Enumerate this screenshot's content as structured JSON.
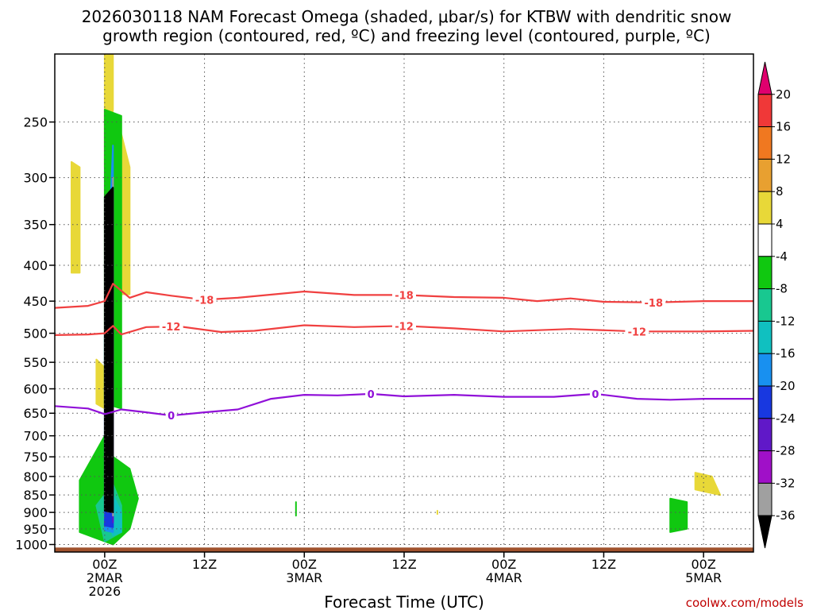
{
  "chart_data": {
    "type": "time-height",
    "title": "2026030118 NAM Forecast Omega (shaded, μbar/s) for KTBW with dendritic snow growth region (contoured, red, ºC) and freezing level (contoured, purple, ºC)",
    "title_lines": [
      "2026030118 NAM Forecast Omega (shaded, μbar/s) for KTBW with dendritic snow",
      "growth region (contoured, red, ºC) and freezing level (contoured, purple, ºC)"
    ],
    "xlabel": "Forecast Time (UTC)",
    "ylabel": "",
    "y_scale": "pressure",
    "y_ticks": [
      250,
      300,
      350,
      400,
      450,
      500,
      550,
      600,
      650,
      700,
      750,
      800,
      850,
      900,
      950,
      1000
    ],
    "ylim": [
      1025,
      200
    ],
    "x_start": "2026-03-01T18Z",
    "x_end": "2026-03-05T06Z",
    "x_ticks": [
      {
        "time": "2026-03-02T00Z",
        "lines": [
          "00Z",
          "2MAR",
          "2026"
        ]
      },
      {
        "time": "2026-03-02T12Z",
        "lines": [
          "12Z"
        ]
      },
      {
        "time": "2026-03-03T00Z",
        "lines": [
          "00Z",
          "3MAR"
        ]
      },
      {
        "time": "2026-03-03T12Z",
        "lines": [
          "12Z"
        ]
      },
      {
        "time": "2026-03-04T00Z",
        "lines": [
          "00Z",
          "4MAR"
        ]
      },
      {
        "time": "2026-03-04T12Z",
        "lines": [
          "12Z"
        ]
      },
      {
        "time": "2026-03-05T00Z",
        "lines": [
          "00Z",
          "5MAR"
        ]
      }
    ],
    "grid": true,
    "colorbar": {
      "units": "μbar/s",
      "ticks": [
        20,
        16,
        12,
        8,
        4,
        -4,
        -8,
        -12,
        -16,
        -20,
        -24,
        -28,
        -32,
        -36
      ],
      "colors": [
        "#e0006e",
        "#f03838",
        "#f07820",
        "#e8a030",
        "#e8d838",
        "#ffffff",
        "#10c810",
        "#18c890",
        "#10c0c0",
        "#1890f0",
        "#1838e0",
        "#6018c8",
        "#a010c8",
        "#a0a0a0",
        "#000000"
      ]
    },
    "series": [
      {
        "name": "-18",
        "color": "#f04040",
        "labels": [
          {
            "time": "2026-03-02T12Z"
          },
          {
            "time": "2026-03-03T12Z"
          },
          {
            "time": "2026-03-04T18Z"
          }
        ],
        "points": [
          [
            "2026-03-01T18Z",
            460
          ],
          [
            "2026-03-01T22Z",
            457
          ],
          [
            "2026-03-02T00Z",
            450
          ],
          [
            "2026-03-02T01Z",
            425
          ],
          [
            "2026-03-02T03Z",
            445
          ],
          [
            "2026-03-02T05Z",
            437
          ],
          [
            "2026-03-02T08Z",
            442
          ],
          [
            "2026-03-02T12Z",
            448
          ],
          [
            "2026-03-02T16Z",
            445
          ],
          [
            "2026-03-03T00Z",
            436
          ],
          [
            "2026-03-03T06Z",
            441
          ],
          [
            "2026-03-03T12Z",
            441
          ],
          [
            "2026-03-03T18Z",
            444
          ],
          [
            "2026-03-04T00Z",
            445
          ],
          [
            "2026-03-04T04Z",
            450
          ],
          [
            "2026-03-04T08Z",
            446
          ],
          [
            "2026-03-04T12Z",
            451
          ],
          [
            "2026-03-04T18Z",
            452
          ],
          [
            "2026-03-05T00Z",
            450
          ],
          [
            "2026-03-05T06Z",
            450
          ]
        ]
      },
      {
        "name": "-12",
        "color": "#f04040",
        "labels": [
          {
            "time": "2026-03-02T08Z"
          },
          {
            "time": "2026-03-03T12Z"
          },
          {
            "time": "2026-03-04T16Z"
          }
        ],
        "points": [
          [
            "2026-03-01T18Z",
            503
          ],
          [
            "2026-03-01T22Z",
            502
          ],
          [
            "2026-03-02T00Z",
            500
          ],
          [
            "2026-03-02T01Z",
            488
          ],
          [
            "2026-03-02T02Z",
            502
          ],
          [
            "2026-03-02T05Z",
            490
          ],
          [
            "2026-03-02T09Z",
            489
          ],
          [
            "2026-03-02T14Z",
            498
          ],
          [
            "2026-03-02T18Z",
            496
          ],
          [
            "2026-03-03T00Z",
            487
          ],
          [
            "2026-03-03T06Z",
            490
          ],
          [
            "2026-03-03T12Z",
            488
          ],
          [
            "2026-03-03T18Z",
            492
          ],
          [
            "2026-03-04T00Z",
            497
          ],
          [
            "2026-03-04T08Z",
            493
          ],
          [
            "2026-03-04T16Z",
            497
          ],
          [
            "2026-03-05T00Z",
            497
          ],
          [
            "2026-03-05T06Z",
            496
          ]
        ]
      },
      {
        "name": "0",
        "color": "#9010d8",
        "labels": [
          {
            "time": "2026-03-02T08Z"
          },
          {
            "time": "2026-03-03T08Z"
          },
          {
            "time": "2026-03-04T11Z"
          }
        ],
        "points": [
          [
            "2026-03-01T18Z",
            635
          ],
          [
            "2026-03-01T22Z",
            640
          ],
          [
            "2026-03-02T00Z",
            652
          ],
          [
            "2026-03-02T02Z",
            642
          ],
          [
            "2026-03-02T05Z",
            648
          ],
          [
            "2026-03-02T08Z",
            655
          ],
          [
            "2026-03-02T12Z",
            648
          ],
          [
            "2026-03-02T16Z",
            642
          ],
          [
            "2026-03-02T20Z",
            620
          ],
          [
            "2026-03-03T00Z",
            612
          ],
          [
            "2026-03-03T04Z",
            613
          ],
          [
            "2026-03-03T08Z",
            610
          ],
          [
            "2026-03-03T12Z",
            615
          ],
          [
            "2026-03-03T18Z",
            612
          ],
          [
            "2026-03-04T00Z",
            616
          ],
          [
            "2026-03-04T06Z",
            616
          ],
          [
            "2026-03-04T11Z",
            610
          ],
          [
            "2026-03-04T16Z",
            620
          ],
          [
            "2026-03-04T20Z",
            622
          ],
          [
            "2026-03-05T00Z",
            620
          ],
          [
            "2026-03-05T06Z",
            620
          ]
        ]
      }
    ],
    "shaded_regions": [
      {
        "value_band": "4 to 8",
        "color": "#e8d838",
        "polygon": [
          [
            "2026-03-02T00Z",
            200
          ],
          [
            "2026-03-02T00Z",
            290
          ],
          [
            "2026-03-02T01Z",
            240
          ],
          [
            "2026-03-02T01Z",
            200
          ]
        ]
      },
      {
        "value_band": "4 to 8",
        "color": "#e8d838",
        "polygon": [
          [
            "2026-03-01T20Z",
            285
          ],
          [
            "2026-03-01T21Z",
            290
          ],
          [
            "2026-03-01T21Z",
            410
          ],
          [
            "2026-03-01T20Z",
            410
          ]
        ]
      },
      {
        "value_band": "4 to 8",
        "color": "#e8d838",
        "polygon": [
          [
            "2026-03-02T02Z",
            260
          ],
          [
            "2026-03-02T03Z",
            290
          ],
          [
            "2026-03-02T03Z",
            440
          ],
          [
            "2026-03-02T02Z",
            440
          ]
        ]
      },
      {
        "value_band": "4 to 8",
        "color": "#e8d838",
        "polygon": [
          [
            "2026-03-01T23Z",
            545
          ],
          [
            "2026-03-02T00Z",
            560
          ],
          [
            "2026-03-02T00Z",
            640
          ],
          [
            "2026-03-01T23Z",
            630
          ]
        ]
      },
      {
        "value_band": "4 to 8",
        "color": "#e8d838",
        "polygon": [
          [
            "2026-03-04T23Z",
            790
          ],
          [
            "2026-03-05T01Z",
            800
          ],
          [
            "2026-03-05T02Z",
            850
          ],
          [
            "2026-03-04T23Z",
            835
          ]
        ]
      },
      {
        "value_band": "-4 to -8",
        "color": "#10c810",
        "polygon": [
          [
            "2026-03-01T21Z",
            810
          ],
          [
            "2026-03-02T00Z",
            700
          ],
          [
            "2026-03-02T01Z",
            750
          ],
          [
            "2026-03-02T03Z",
            780
          ],
          [
            "2026-03-02T04Z",
            860
          ],
          [
            "2026-03-02T03Z",
            950
          ],
          [
            "2026-03-02T01Z",
            1000
          ],
          [
            "2026-03-01T21Z",
            960
          ]
        ]
      },
      {
        "value_band": "-4 to -8",
        "color": "#10c810",
        "polygon": [
          [
            "2026-03-02T00Z",
            630
          ],
          [
            "2026-03-02T00Z",
            240
          ],
          [
            "2026-03-02T02Z",
            245
          ],
          [
            "2026-03-02T02Z",
            640
          ]
        ]
      },
      {
        "value_band": "-4 to -8",
        "color": "#10c810",
        "polygon": [
          [
            "2026-03-02T23Z",
            875
          ],
          [
            "2026-03-02T23Z",
            870
          ],
          [
            "2026-03-02T23Z",
            910
          ],
          [
            "2026-03-02T23Z",
            905
          ]
        ]
      },
      {
        "value_band": "-4 to -8",
        "color": "#10c810",
        "polygon": [
          [
            "2026-03-04T20Z",
            860
          ],
          [
            "2026-03-04T22Z",
            870
          ],
          [
            "2026-03-04T22Z",
            950
          ],
          [
            "2026-03-04T20Z",
            960
          ],
          [
            "2026-03-04T20Z",
            900
          ]
        ]
      },
      {
        "value_band": "-8 to -12",
        "color": "#18c890",
        "polygon": [
          [
            "2026-03-01T23Z",
            880
          ],
          [
            "2026-03-02T01Z",
            820
          ],
          [
            "2026-03-02T02Z",
            880
          ],
          [
            "2026-03-02T02Z",
            960
          ],
          [
            "2026-03-02T00Z",
            990
          ]
        ]
      },
      {
        "value_band": "-12 to -16",
        "color": "#10c0c0",
        "polygon": [
          [
            "2026-03-02T00Z",
            900
          ],
          [
            "2026-03-02T01Z",
            850
          ],
          [
            "2026-03-02T02Z",
            900
          ],
          [
            "2026-03-02T02Z",
            960
          ],
          [
            "2026-03-02T01Z",
            970
          ]
        ]
      },
      {
        "value_band": "-16 to -20",
        "color": "#1890f0",
        "polygon": [
          [
            "2026-03-02T01Z",
            270
          ],
          [
            "2026-03-02T01Z",
            280
          ],
          [
            "2026-03-02T01Z",
            960
          ],
          [
            "2026-03-02T00Z",
            955
          ],
          [
            "2026-03-02T00Z",
            500
          ]
        ]
      },
      {
        "value_band": "-20 to -24",
        "color": "#1838e0",
        "polygon": [
          [
            "2026-03-02T01Z",
            300
          ],
          [
            "2026-03-02T01Z",
            945
          ],
          [
            "2026-03-02T00Z",
            940
          ]
        ]
      },
      {
        "value_band": "-24 to -28",
        "color": "#6018c8",
        "polygon": [
          [
            "2026-03-02T01Z",
            310
          ],
          [
            "2026-03-02T01Z",
            930
          ]
        ]
      },
      {
        "value_band": "-32 to -36",
        "color": "#a0a0a0",
        "polygon": [
          [
            "2026-03-02T01Z",
            300
          ],
          [
            "2026-03-02T01Z",
            910
          ]
        ]
      },
      {
        "value_band": "< -36",
        "color": "#000000",
        "polygon": [
          [
            "2026-03-02T00Z",
            320
          ],
          [
            "2026-03-02T01Z",
            310
          ],
          [
            "2026-03-02T01Z",
            900
          ],
          [
            "2026-03-02T00Z",
            895
          ]
        ]
      },
      {
        "value_band": "4 to 8",
        "color": "#e8d838",
        "polygon": [
          [
            "2026-03-03T16Z",
            895
          ],
          [
            "2026-03-03T16Z",
            900
          ],
          [
            "2026-03-03T16Z",
            905
          ]
        ]
      }
    ],
    "ground": {
      "color": "#a0522d",
      "pressure": 1010
    }
  },
  "credit": "coolwx.com/models"
}
